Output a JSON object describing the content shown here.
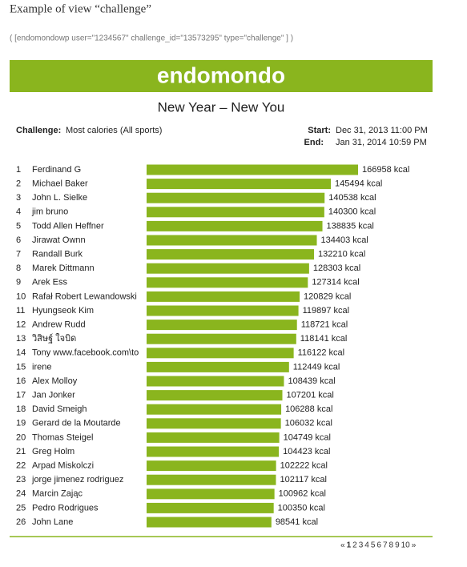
{
  "header": {
    "title": "Example of view “challenge”",
    "shortcode": "( [endomondowp user=\"1234567\" challenge_id=\"13573295\" type=\"challenge\" ] )"
  },
  "banner": {
    "logo": "endomondo"
  },
  "challenge": {
    "title": "New Year – New You",
    "challenge_label": "Challenge:",
    "challenge_value": "Most calories (All sports)",
    "start_label": "Start:",
    "start_value": "Dec 31, 2013 11:00 PM",
    "end_label": "End:",
    "end_value": "Jan 31, 2014 10:59 PM"
  },
  "leaderboard": {
    "color": "#8ab51e",
    "rows": [
      {
        "rank": 1,
        "name": "Ferdinand G",
        "value": 166958,
        "value_label": "166958 kcal"
      },
      {
        "rank": 2,
        "name": "Michael Baker",
        "value": 145494,
        "value_label": "145494 kcal"
      },
      {
        "rank": 3,
        "name": "John L. Sielke",
        "value": 140538,
        "value_label": "140538 kcal"
      },
      {
        "rank": 4,
        "name": "jim bruno",
        "value": 140300,
        "value_label": "140300 kcal"
      },
      {
        "rank": 5,
        "name": "Todd Allen Heffner",
        "value": 138835,
        "value_label": "138835 kcal"
      },
      {
        "rank": 6,
        "name": "Jirawat Ownn",
        "value": 134403,
        "value_label": "134403 kcal"
      },
      {
        "rank": 7,
        "name": "Randall Burk",
        "value": 132210,
        "value_label": "132210 kcal"
      },
      {
        "rank": 8,
        "name": "Marek Dittmann",
        "value": 128303,
        "value_label": "128303 kcal"
      },
      {
        "rank": 9,
        "name": "Arek Ess",
        "value": 127314,
        "value_label": "127314 kcal"
      },
      {
        "rank": 10,
        "name": "Rafał Robert Lewandowski",
        "value": 120829,
        "value_label": "120829 kcal"
      },
      {
        "rank": 11,
        "name": "Hyungseok Kim",
        "value": 119897,
        "value_label": "119897 kcal"
      },
      {
        "rank": 12,
        "name": "Andrew Rudd",
        "value": 118721,
        "value_label": "118721 kcal"
      },
      {
        "rank": 13,
        "name": "วิสิษฐ์ ใจบิด",
        "value": 118141,
        "value_label": "118141 kcal"
      },
      {
        "rank": 14,
        "name": "Tony www.facebook.com\\to",
        "value": 116122,
        "value_label": "116122 kcal"
      },
      {
        "rank": 15,
        "name": "irene",
        "value": 112449,
        "value_label": "112449 kcal"
      },
      {
        "rank": 16,
        "name": "Alex Molloy",
        "value": 108439,
        "value_label": "108439 kcal"
      },
      {
        "rank": 17,
        "name": "Jan Jonker",
        "value": 107201,
        "value_label": "107201 kcal"
      },
      {
        "rank": 18,
        "name": "David Smeigh",
        "value": 106288,
        "value_label": "106288 kcal"
      },
      {
        "rank": 19,
        "name": "Gerard de la Moutarde",
        "value": 106032,
        "value_label": "106032 kcal"
      },
      {
        "rank": 20,
        "name": "Thomas Steigel",
        "value": 104749,
        "value_label": "104749 kcal"
      },
      {
        "rank": 21,
        "name": "Greg Holm",
        "value": 104423,
        "value_label": "104423 kcal"
      },
      {
        "rank": 22,
        "name": "Arpad Miskolczi",
        "value": 102222,
        "value_label": "102222 kcal"
      },
      {
        "rank": 23,
        "name": "jorge jimenez rodriguez",
        "value": 102117,
        "value_label": "102117 kcal"
      },
      {
        "rank": 24,
        "name": "Marcin Zając",
        "value": 100962,
        "value_label": "100962 kcal"
      },
      {
        "rank": 25,
        "name": "Pedro Rodrigues",
        "value": 100350,
        "value_label": "100350 kcal"
      },
      {
        "rank": 26,
        "name": "John Lane",
        "value": 98541,
        "value_label": "98541 kcal"
      }
    ]
  },
  "pagination": {
    "items": [
      "«",
      "1",
      "2",
      "3",
      "4",
      "5",
      "6",
      "7",
      "8",
      "9",
      "10",
      "»"
    ]
  }
}
